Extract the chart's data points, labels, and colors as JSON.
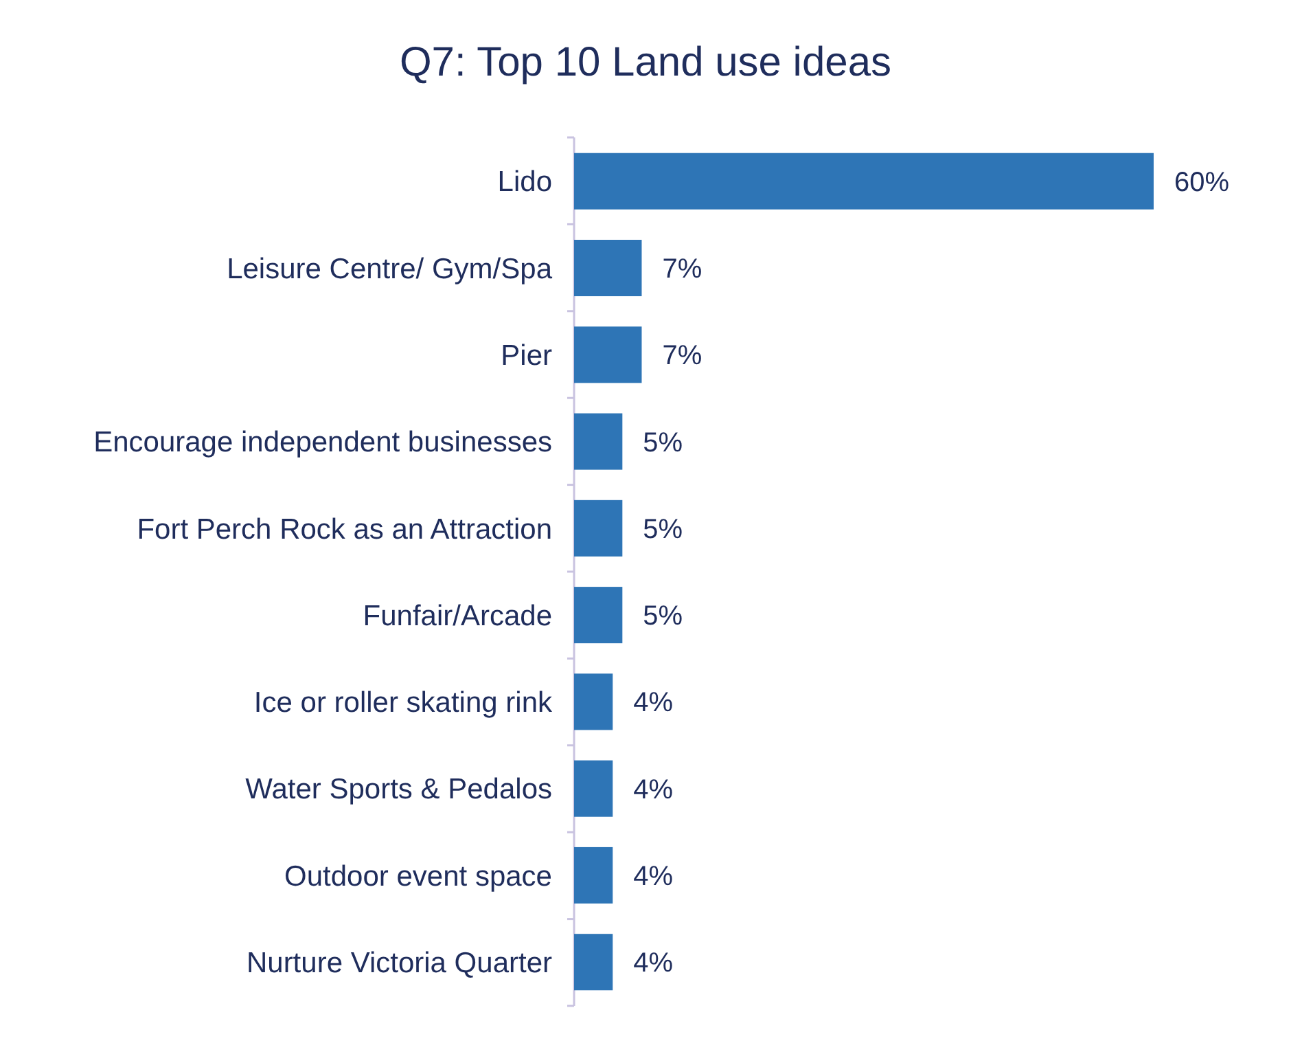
{
  "chart_data": {
    "type": "bar",
    "title": "Q7: Top 10 Land use ideas",
    "orientation": "horizontal",
    "categories": [
      "Lido",
      "Leisure Centre/ Gym/Spa",
      "Pier",
      "Encourage independent businesses",
      "Fort Perch Rock as an Attraction",
      "Funfair/Arcade",
      "Ice or roller skating rink",
      "Water Sports & Pedalos",
      "Outdoor event space",
      "Nurture Victoria Quarter"
    ],
    "values": [
      60,
      7,
      7,
      5,
      5,
      5,
      4,
      4,
      4,
      4
    ],
    "value_labels": [
      "60%",
      "7%",
      "7%",
      "5%",
      "5%",
      "5%",
      "4%",
      "4%",
      "4%",
      "4%"
    ],
    "color": "#2e75b6"
  }
}
